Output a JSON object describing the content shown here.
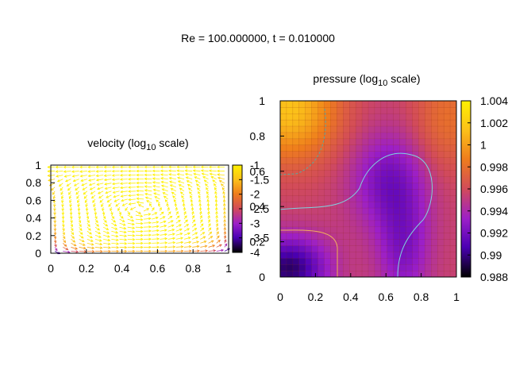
{
  "figure": {
    "title": "Re = 100.000000, t = 0.010000"
  },
  "chart_data": [
    {
      "type": "vector-field",
      "title_main": "velocity (log",
      "title_sub": "10",
      "title_tail": " scale)",
      "xticks": [
        "0",
        "0.2",
        "0.4",
        "0.6",
        "0.8",
        "1"
      ],
      "yticks": [
        "0",
        "0.2",
        "0.4",
        "0.6",
        "0.8",
        "1"
      ],
      "xlim": [
        0,
        1
      ],
      "ylim": [
        0,
        1
      ],
      "colorbar": {
        "range": [
          -4,
          -1
        ],
        "ticks": [
          "-4",
          "-3.5",
          "-3",
          "-2.5",
          "-2",
          "-1.5",
          "-1"
        ],
        "palette": [
          "#000000",
          "#4b00b4",
          "#9c1fc8",
          "#d24b5a",
          "#ef7d1c",
          "#fbbf1a",
          "#fff000"
        ]
      },
      "grid": "off"
    },
    {
      "type": "heatmap",
      "title_main": "pressure (log",
      "title_sub": "10",
      "title_tail": " scale)",
      "xticks": [
        "0",
        "0.2",
        "0.4",
        "0.6",
        "0.8",
        "1"
      ],
      "yticks": [
        "0",
        "0.2",
        "0.4",
        "0.6",
        "0.8",
        "1"
      ],
      "xlim": [
        0,
        1
      ],
      "ylim": [
        0,
        1
      ],
      "colorbar": {
        "range": [
          0.988,
          1.004
        ],
        "ticks": [
          "0.988",
          "0.99",
          "0.992",
          "0.994",
          "0.996",
          "0.998",
          "1",
          "1.002",
          "1.004"
        ],
        "palette": [
          "#000000",
          "#4b00b4",
          "#9c1fc8",
          "#d24b5a",
          "#ef7d1c",
          "#fbbf1a",
          "#fff000"
        ]
      },
      "contours": [
        {
          "level": 0.998,
          "color": "#5aa8a0"
        },
        {
          "level": 0.992,
          "color": "#7fd4e0"
        },
        {
          "level": 0.989,
          "color": "#f2b060"
        }
      ],
      "grid": "off"
    }
  ]
}
